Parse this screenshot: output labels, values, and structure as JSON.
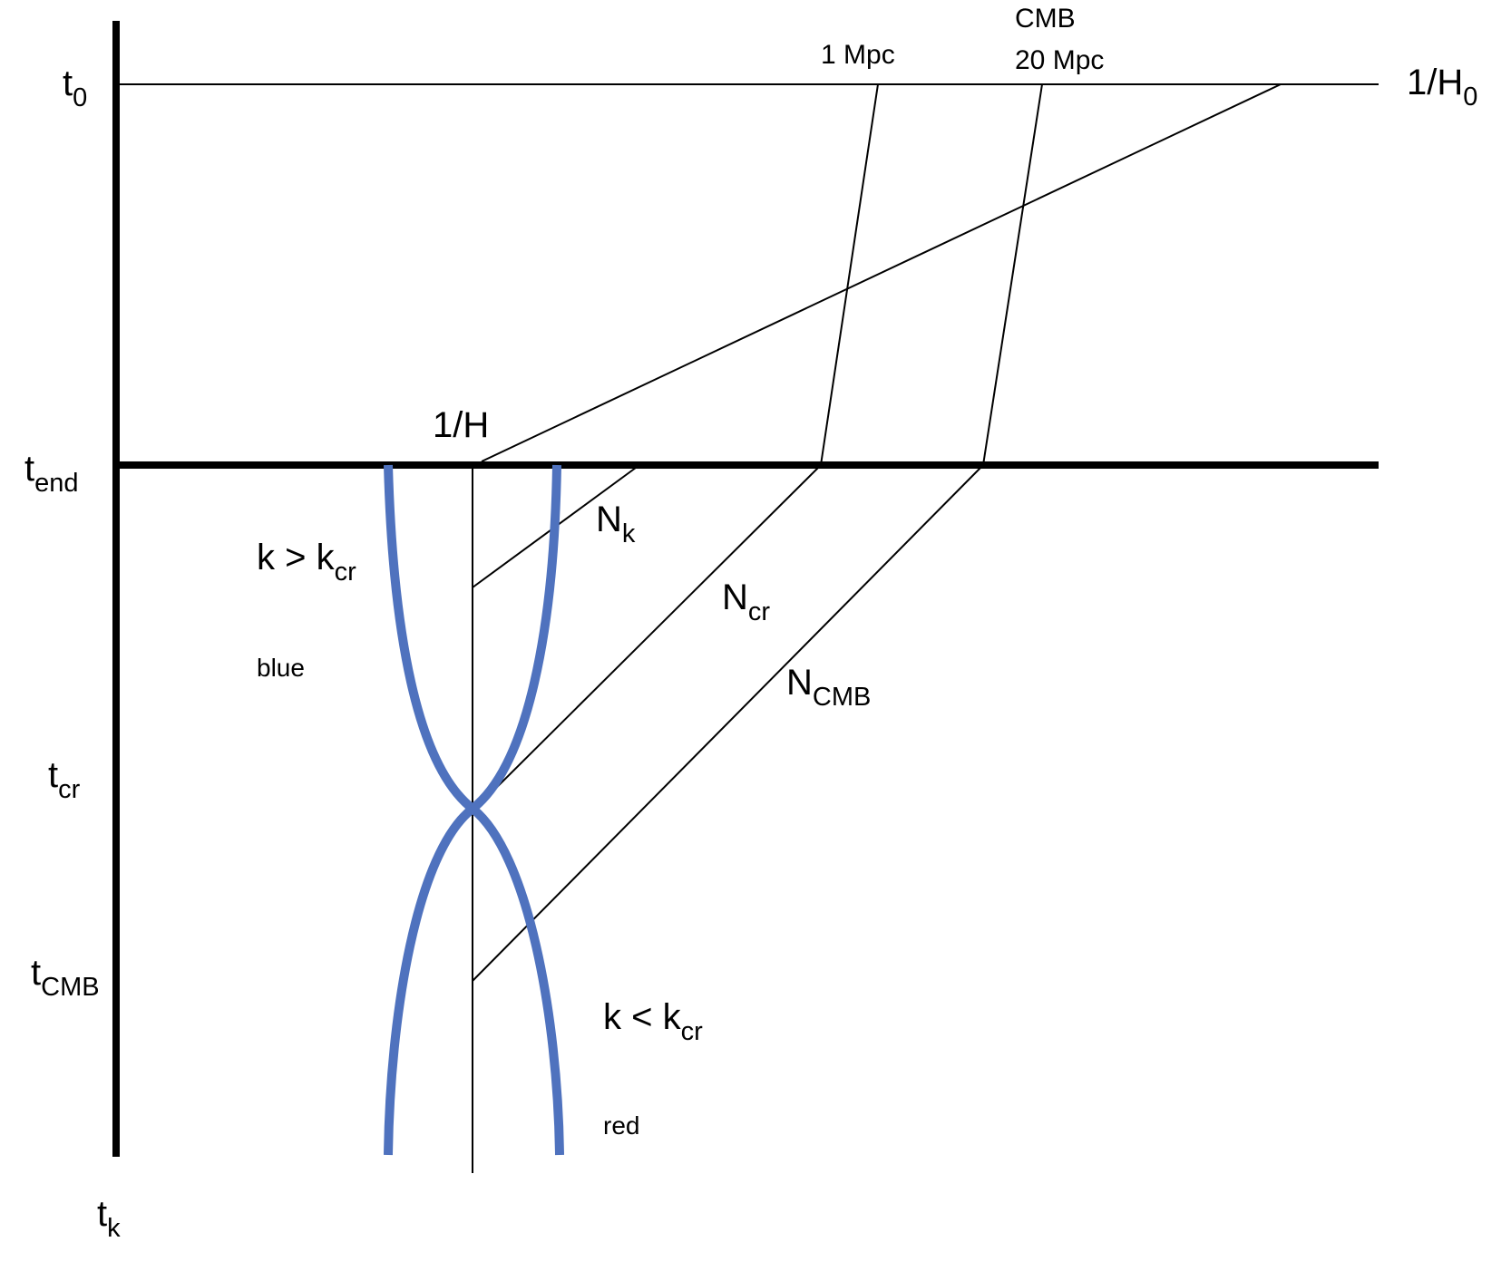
{
  "labels": [
    {
      "text": "t",
      "sub": "0"
    },
    {
      "text": "1/H",
      "sub": "0"
    },
    {
      "text": "1 Mpc"
    },
    {
      "text": "CMB"
    },
    {
      "text": "20 Mpc"
    },
    {
      "text": "1/H"
    },
    {
      "text": "t",
      "sub": "end"
    },
    {
      "text": "k > k",
      "sub": "cr"
    },
    {
      "text": "blue"
    },
    {
      "text": "N",
      "sub": "k"
    },
    {
      "text": "N",
      "sub": "cr"
    },
    {
      "text": "N",
      "sub": "CMB"
    },
    {
      "text": "t",
      "sub": "cr"
    },
    {
      "text": "t",
      "sub": "CMB"
    },
    {
      "text": "k < k",
      "sub": "cr"
    },
    {
      "text": "red"
    },
    {
      "text": "t",
      "sub": "k"
    }
  ]
}
